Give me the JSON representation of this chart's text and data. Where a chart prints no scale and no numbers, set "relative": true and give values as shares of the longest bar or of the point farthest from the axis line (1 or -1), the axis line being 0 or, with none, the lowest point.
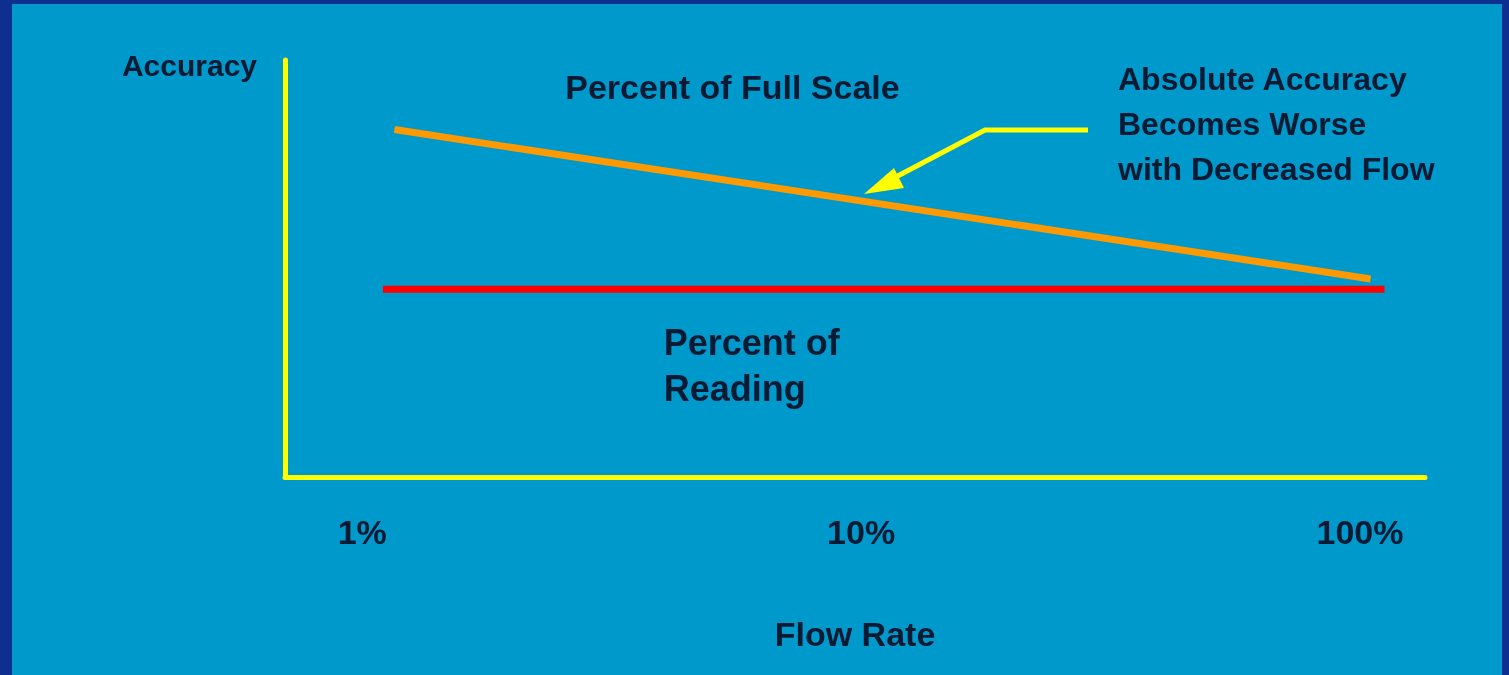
{
  "chart_data": {
    "type": "line",
    "xlabel": "Flow Rate",
    "ylabel": "Accuracy",
    "log": "x",
    "relative": true,
    "grid": false,
    "legend": false,
    "marker": "none",
    "line_style": "solid",
    "xlim": [
      0.7,
      135
    ],
    "xticks": [
      {
        "value": 1,
        "label": "1%"
      },
      {
        "value": 10,
        "label": "10%"
      },
      {
        "value": 100,
        "label": "100%"
      }
    ],
    "series": [
      {
        "name": "Percent of Full Scale",
        "color": "#ff9900",
        "x": [
          1.16,
          105
        ],
        "values": [
          1,
          0.57
        ]
      },
      {
        "name": "Percent of Reading",
        "color": "#ff0000",
        "x": [
          1.1,
          112
        ],
        "values": [
          0.54,
          0.54
        ]
      }
    ],
    "annotations": [
      "Absolute Accuracy Becomes Worse with Decreased Flow"
    ]
  }
}
